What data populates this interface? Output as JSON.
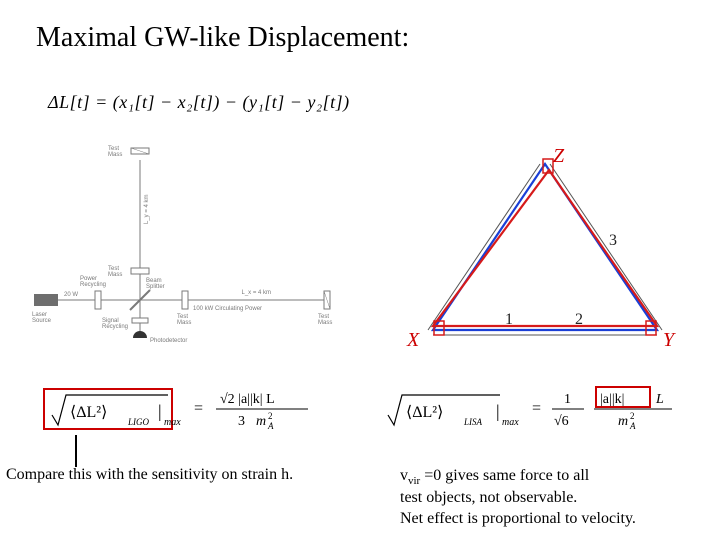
{
  "title": "Maximal GW-like Displacement:",
  "eq_top": "ΔL[t] = (x₁[t] − x₂[t]) − (y₁[t] − y₂[t])",
  "ligo_diagram": {
    "labels": {
      "test_mass_top": "Test\nMass",
      "vertical_len": "L_y = 4 km",
      "test_mass_mid": "Test\nMass",
      "power_recycling": "Power\nRecycling",
      "beam_splitter": "Beam\nSplitter",
      "horizontal_len": "L_x = 4 km",
      "circulating": "100 kW Circulating Power",
      "laser": "Laser\nSource",
      "laser_power": "20 W",
      "signal_recycling": "Signal\nRecycling",
      "photodetector": "Photodetector",
      "test_mass_right1": "Test\nMass",
      "test_mass_right2": "Test\nMass"
    },
    "colors": {
      "line": "#7a7a7a",
      "text": "#7a7a7a",
      "mirror": "#9a9a9a",
      "box": "#6e6e6e"
    },
    "label_fontsize": 6
  },
  "triangle": {
    "labels": {
      "x": "X",
      "y": "Y",
      "z": "Z",
      "v1": "1",
      "v2": "2",
      "v3": "3"
    },
    "colors": {
      "label": "#cc0000",
      "num": "#222222",
      "blue": "#1a3fd6",
      "red": "#d61a1a",
      "frame": "#555555"
    },
    "label_fontsize": 20,
    "num_fontsize": 16,
    "points": {
      "X": [
        38,
        190
      ],
      "Y": [
        262,
        190
      ],
      "Z": [
        150,
        24
      ]
    },
    "offsets": {
      "red": 4,
      "blue": -4
    }
  },
  "ligo_eq": {
    "colors": {
      "text": "#000000",
      "box": "#cc0000"
    },
    "fontsize": 16,
    "eq_parts": {
      "root_inner": "⟨ΔL²⟩",
      "sub": "LIGO",
      "bar": "|",
      "max": "max",
      "num": "√2 |a| k L",
      "den": "3 m²_A",
      "num_left": "√2 |a||k| L",
      "den_left": "3",
      "rhs_num": "√2 |a||k| L",
      "rhs_den": "m²_A"
    }
  },
  "lisa_eq": {
    "colors": {
      "text": "#000000",
      "box": "#cc0000"
    },
    "fontsize": 16
  },
  "compare_text": "Compare this with the sensitivity on strain h.",
  "vvir": {
    "prefix": "v",
    "sub": "vir",
    "line1_rest": " =0 gives same force to all",
    "line2": "test objects, not observable.",
    "line3": "Net effect is proportional to velocity."
  }
}
